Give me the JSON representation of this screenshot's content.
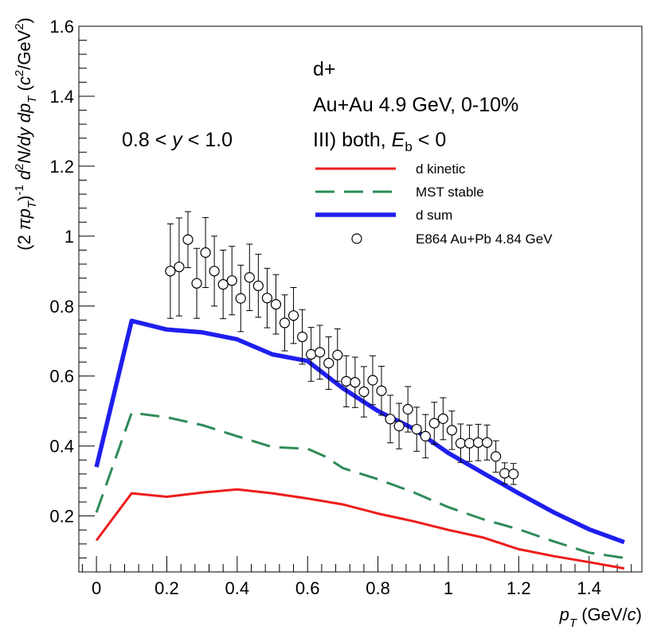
{
  "chart_data": {
    "type": "line",
    "title": "",
    "xlabel": "p_T (GeV/c)",
    "ylabel": "(2 π p_T)^-1 d^2N/dy dp_T (c^2/GeV^2)",
    "xlim": [
      -0.05,
      1.55
    ],
    "ylim": [
      0.04,
      1.6
    ],
    "x_ticks": [
      0,
      0.2,
      0.4,
      0.6,
      0.8,
      1,
      1.2,
      1.4
    ],
    "x_tick_labels": [
      "0",
      "0.2",
      "0.4",
      "0.6",
      "0.8",
      "1",
      "1.2",
      "1.4"
    ],
    "y_ticks": [
      0.2,
      0.4,
      0.6,
      0.8,
      1.0,
      1.2,
      1.4,
      1.6
    ],
    "y_tick_labels": [
      "0.2",
      "0.4",
      "0.6",
      "0.8",
      "1",
      "1.2",
      "1.4",
      "1.6"
    ],
    "annotations": {
      "particle": "d+",
      "system": "Au+Au 4.9 GeV, 0-10%",
      "scenario_prefix": "III) both, ",
      "scenario_var": "E",
      "scenario_sub": "b",
      "scenario_suffix": " < 0",
      "rapidity_prefix": "0.8 < ",
      "rapidity_var": "y",
      "rapidity_suffix": " < 1.0"
    },
    "axis_title_parts": {
      "x_var": "p",
      "x_sub": "T",
      "x_unit_open": " (GeV/",
      "x_unit_var": "c",
      "x_unit_close": ")",
      "y_pre": "(2 ",
      "y_pi": "π",
      "y_p": "p",
      "y_sub": "T",
      "y_close": ")",
      "y_exp": "-1",
      "y_d": " d",
      "y_sq": "2",
      "y_N": "N/dy dp",
      "y_sub2": "T",
      "y_unit_open": " (",
      "y_c": "c",
      "y_c_sup": "2",
      "y_gev": "/GeV",
      "y_gev_sup": "2",
      "y_unit_close": ")"
    },
    "series": [
      {
        "name": "d kinetic",
        "color": "#ee1c1c",
        "style": "solid",
        "x": [
          0.0,
          0.1,
          0.2,
          0.3,
          0.4,
          0.5,
          0.6,
          0.7,
          0.8,
          0.9,
          1.0,
          1.1,
          1.2,
          1.3,
          1.4,
          1.5
        ],
        "y": [
          0.13,
          0.265,
          0.255,
          0.267,
          0.276,
          0.265,
          0.25,
          0.233,
          0.207,
          0.185,
          0.16,
          0.138,
          0.105,
          0.085,
          0.068,
          0.05
        ]
      },
      {
        "name": "MST stable",
        "color": "#2e8b57",
        "style": "dashed",
        "x": [
          0.0,
          0.1,
          0.2,
          0.3,
          0.4,
          0.5,
          0.6,
          0.65,
          0.7,
          0.8,
          0.9,
          1.0,
          1.1,
          1.2,
          1.3,
          1.4,
          1.5
        ],
        "y": [
          0.21,
          0.495,
          0.482,
          0.46,
          0.428,
          0.397,
          0.392,
          0.37,
          0.337,
          0.305,
          0.268,
          0.225,
          0.19,
          0.162,
          0.127,
          0.095,
          0.08
        ]
      },
      {
        "name": "d sum",
        "color": "#1f1fee",
        "style": "solid-thick",
        "x": [
          0.0,
          0.1,
          0.2,
          0.3,
          0.4,
          0.5,
          0.6,
          0.7,
          0.8,
          0.9,
          1.0,
          1.1,
          1.2,
          1.3,
          1.4,
          1.5
        ],
        "y": [
          0.34,
          0.758,
          0.733,
          0.725,
          0.705,
          0.662,
          0.643,
          0.565,
          0.5,
          0.45,
          0.38,
          0.322,
          0.265,
          0.21,
          0.162,
          0.125
        ]
      }
    ],
    "points": {
      "name": "E864 Au+Pb 4.84 GeV",
      "style": "open-circle",
      "x": [
        0.21,
        0.235,
        0.26,
        0.285,
        0.31,
        0.335,
        0.36,
        0.385,
        0.41,
        0.435,
        0.46,
        0.485,
        0.51,
        0.535,
        0.56,
        0.585,
        0.61,
        0.635,
        0.66,
        0.685,
        0.71,
        0.735,
        0.76,
        0.785,
        0.81,
        0.835,
        0.86,
        0.885,
        0.91,
        0.935,
        0.96,
        0.985,
        1.01,
        1.035,
        1.06,
        1.085,
        1.11,
        1.135,
        1.16,
        1.185
      ],
      "y": [
        0.9,
        0.912,
        0.99,
        0.865,
        0.953,
        0.9,
        0.862,
        0.873,
        0.822,
        0.882,
        0.858,
        0.823,
        0.805,
        0.752,
        0.773,
        0.712,
        0.662,
        0.668,
        0.637,
        0.66,
        0.585,
        0.582,
        0.555,
        0.588,
        0.558,
        0.477,
        0.457,
        0.505,
        0.448,
        0.428,
        0.465,
        0.478,
        0.445,
        0.408,
        0.408,
        0.41,
        0.41,
        0.37,
        0.322,
        0.32
      ],
      "yerr": [
        0.135,
        0.14,
        0.08,
        0.1,
        0.1,
        0.1,
        0.098,
        0.098,
        0.095,
        0.095,
        0.09,
        0.085,
        0.085,
        0.08,
        0.08,
        0.078,
        0.077,
        0.077,
        0.075,
        0.075,
        0.073,
        0.072,
        0.072,
        0.07,
        0.07,
        0.068,
        0.065,
        0.065,
        0.063,
        0.062,
        0.06,
        0.06,
        0.055,
        0.055,
        0.052,
        0.052,
        0.05,
        0.045,
        0.03,
        0.03
      ]
    },
    "legend_position": "top-right"
  }
}
